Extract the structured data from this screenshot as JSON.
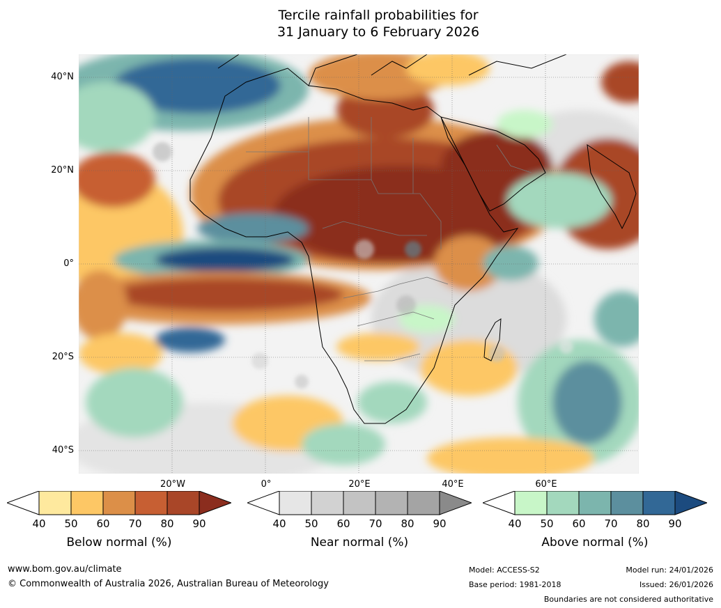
{
  "title": {
    "line1": "Tercile rainfall probabilities for",
    "line2": "31 January to 6 February 2026"
  },
  "map": {
    "lat_labels": [
      "40°N",
      "20°N",
      "0°",
      "20°S",
      "40°S"
    ],
    "lon_labels": [
      "20°W",
      "0°",
      "20°E",
      "40°E",
      "60°E"
    ]
  },
  "legends": [
    {
      "title": "Below normal (%)",
      "ticks": [
        "40",
        "50",
        "60",
        "70",
        "80",
        "90"
      ],
      "colors": [
        "#ffffff",
        "#fee99e",
        "#fdc765",
        "#dc8f48",
        "#c75f33",
        "#a94628",
        "#8b2d1e"
      ]
    },
    {
      "title": "Near normal (%)",
      "ticks": [
        "40",
        "50",
        "60",
        "70",
        "80",
        "90"
      ],
      "colors": [
        "#ffffff",
        "#e6e6e6",
        "#d2d2d2",
        "#c3c3c3",
        "#b3b3b3",
        "#a4a4a4",
        "#8a8a8a"
      ]
    },
    {
      "title": "Above normal (%)",
      "ticks": [
        "40",
        "50",
        "60",
        "70",
        "80",
        "90"
      ],
      "colors": [
        "#ffffff",
        "#c8f6c8",
        "#a3d8bd",
        "#7cb5ad",
        "#5c8f9e",
        "#326896",
        "#1c4b7f"
      ]
    }
  ],
  "footer": {
    "url": "www.bom.gov.au/climate",
    "copyright": "© Commonwealth of Australia 2026, Australian Bureau of Meteorology",
    "model": "Model: ACCESS-S2",
    "base_period": "Base period: 1981-2018",
    "model_run": "Model run: 24/01/2026",
    "issued": "Issued: 26/01/2026",
    "disclaimer": "Boundaries are not considered authoritative"
  }
}
